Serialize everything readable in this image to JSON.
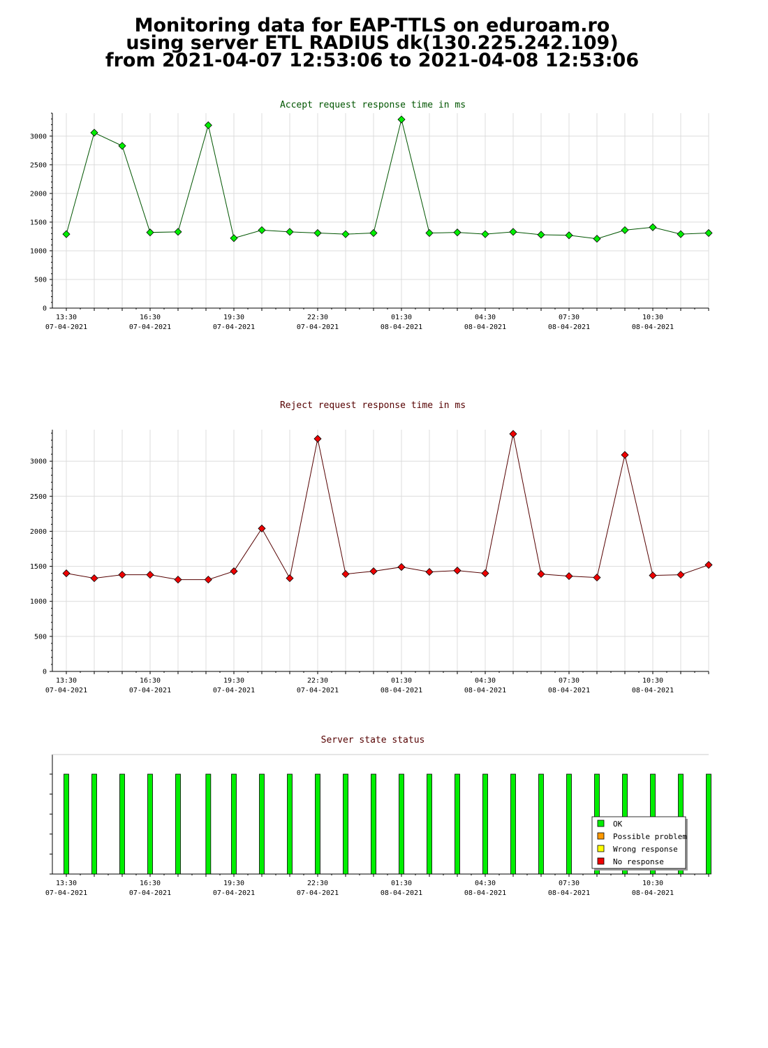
{
  "header": {
    "line1": "Monitoring data for EAP-TTLS on eduroam.ro",
    "line2": "using server ETL RADIUS dk(130.225.242.109)",
    "line3": "from 2021-04-07 12:53:06 to 2021-04-08 12:53:06"
  },
  "colors": {
    "accept_point": "#00ee00",
    "accept_line": "#005500",
    "accept_title": "#005500",
    "reject_point": "#ee0000",
    "reject_line": "#550000",
    "reject_title": "#550000",
    "status_title": "#550000",
    "ok": "#00ee00",
    "possible_problem": "#ff9900",
    "wrong_response": "#ffff00",
    "no_response": "#ee0000"
  },
  "chart_data": [
    {
      "type": "line",
      "title": "Accept request response time in ms",
      "x_tick_labels": [
        {
          "time": "13:30",
          "date": "07-04-2021"
        },
        {
          "time": "16:30",
          "date": "07-04-2021"
        },
        {
          "time": "19:30",
          "date": "07-04-2021"
        },
        {
          "time": "22:30",
          "date": "07-04-2021"
        },
        {
          "time": "01:30",
          "date": "08-04-2021"
        },
        {
          "time": "04:30",
          "date": "08-04-2021"
        },
        {
          "time": "07:30",
          "date": "08-04-2021"
        },
        {
          "time": "10:30",
          "date": "08-04-2021"
        }
      ],
      "yticks": [
        "0",
        "500",
        "1000",
        "1500",
        "2000",
        "2500",
        "3000"
      ],
      "ylim": [
        0,
        3400
      ],
      "x": [
        "2021-04-07 13:30",
        "2021-04-07 14:30",
        "2021-04-07 15:30",
        "2021-04-07 16:30",
        "2021-04-07 17:30",
        "2021-04-07 18:35",
        "2021-04-07 19:30",
        "2021-04-07 20:30",
        "2021-04-07 21:30",
        "2021-04-07 22:30",
        "2021-04-07 23:30",
        "2021-04-08 00:30",
        "2021-04-08 01:30",
        "2021-04-08 02:30",
        "2021-04-08 03:30",
        "2021-04-08 04:30",
        "2021-04-08 05:30",
        "2021-04-08 06:30",
        "2021-04-08 07:30",
        "2021-04-08 08:30",
        "2021-04-08 09:30",
        "2021-04-08 10:30",
        "2021-04-08 11:30",
        "2021-04-08 12:30"
      ],
      "values": [
        1290,
        3060,
        2830,
        1320,
        1330,
        3190,
        1220,
        1360,
        1330,
        1310,
        1290,
        1310,
        3290,
        1310,
        1320,
        1290,
        1330,
        1280,
        1270,
        1210,
        1360,
        1410,
        1290,
        1310
      ]
    },
    {
      "type": "line",
      "title": "Reject request response time in ms",
      "x_tick_labels": [
        {
          "time": "13:30",
          "date": "07-04-2021"
        },
        {
          "time": "16:30",
          "date": "07-04-2021"
        },
        {
          "time": "19:30",
          "date": "07-04-2021"
        },
        {
          "time": "22:30",
          "date": "07-04-2021"
        },
        {
          "time": "01:30",
          "date": "08-04-2021"
        },
        {
          "time": "04:30",
          "date": "08-04-2021"
        },
        {
          "time": "07:30",
          "date": "08-04-2021"
        },
        {
          "time": "10:30",
          "date": "08-04-2021"
        }
      ],
      "yticks": [
        "0",
        "500",
        "1000",
        "1500",
        "2000",
        "2500",
        "3000"
      ],
      "ylim": [
        0,
        3450
      ],
      "x": [
        "2021-04-07 13:30",
        "2021-04-07 14:30",
        "2021-04-07 15:30",
        "2021-04-07 16:30",
        "2021-04-07 17:30",
        "2021-04-07 18:35",
        "2021-04-07 19:30",
        "2021-04-07 20:30",
        "2021-04-07 21:30",
        "2021-04-07 22:30",
        "2021-04-07 23:30",
        "2021-04-08 00:30",
        "2021-04-08 01:30",
        "2021-04-08 02:30",
        "2021-04-08 03:30",
        "2021-04-08 04:30",
        "2021-04-08 05:30",
        "2021-04-08 06:30",
        "2021-04-08 07:30",
        "2021-04-08 08:30",
        "2021-04-08 09:30",
        "2021-04-08 10:30",
        "2021-04-08 11:30",
        "2021-04-08 12:30"
      ],
      "values": [
        1400,
        1330,
        1380,
        1380,
        1310,
        1310,
        1430,
        2040,
        1330,
        3320,
        1390,
        1430,
        1490,
        1420,
        1440,
        1400,
        3390,
        1390,
        1360,
        1340,
        3090,
        1370,
        1380,
        1520
      ]
    },
    {
      "type": "bar",
      "title": "Server state status",
      "x_tick_labels": [
        {
          "time": "13:30",
          "date": "07-04-2021"
        },
        {
          "time": "16:30",
          "date": "07-04-2021"
        },
        {
          "time": "19:30",
          "date": "07-04-2021"
        },
        {
          "time": "22:30",
          "date": "07-04-2021"
        },
        {
          "time": "01:30",
          "date": "08-04-2021"
        },
        {
          "time": "04:30",
          "date": "08-04-2021"
        },
        {
          "time": "07:30",
          "date": "08-04-2021"
        },
        {
          "time": "10:30",
          "date": "08-04-2021"
        }
      ],
      "x": [
        "2021-04-07 13:30",
        "2021-04-07 14:30",
        "2021-04-07 15:30",
        "2021-04-07 16:30",
        "2021-04-07 17:30",
        "2021-04-07 18:35",
        "2021-04-07 19:30",
        "2021-04-07 20:30",
        "2021-04-07 21:30",
        "2021-04-07 22:30",
        "2021-04-07 23:30",
        "2021-04-08 00:30",
        "2021-04-08 01:30",
        "2021-04-08 02:30",
        "2021-04-08 03:30",
        "2021-04-08 04:30",
        "2021-04-08 05:30",
        "2021-04-08 06:30",
        "2021-04-08 07:30",
        "2021-04-08 08:30",
        "2021-04-08 09:30",
        "2021-04-08 10:30",
        "2021-04-08 11:30",
        "2021-04-08 12:30"
      ],
      "status": [
        "OK",
        "OK",
        "OK",
        "OK",
        "OK",
        "OK",
        "OK",
        "OK",
        "OK",
        "OK",
        "OK",
        "OK",
        "OK",
        "OK",
        "OK",
        "OK",
        "OK",
        "OK",
        "OK",
        "OK",
        "OK",
        "OK",
        "OK",
        "OK"
      ],
      "legend": [
        "OK",
        "Possible problem",
        "Wrong response",
        "No response"
      ],
      "legend_position": "bottom-right"
    }
  ]
}
